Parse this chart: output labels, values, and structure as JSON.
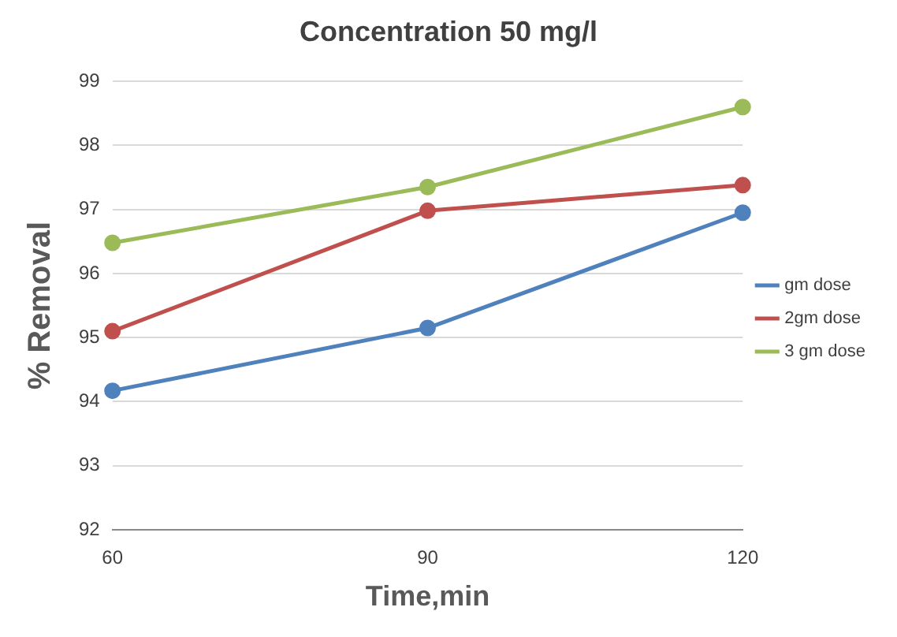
{
  "chart_data": {
    "type": "line",
    "title": "Concentration 50 mg/l",
    "xlabel": "Time,min",
    "ylabel": "% Removal",
    "categories": [
      "60",
      "90",
      "120"
    ],
    "series": [
      {
        "name": "gm dose",
        "color": "#4f81bd",
        "values": [
          94.17,
          95.15,
          96.95
        ]
      },
      {
        "name": "2gm dose",
        "color": "#c0504d",
        "values": [
          95.1,
          96.98,
          97.38
        ]
      },
      {
        "name": "3 gm dose",
        "color": "#9bbb59",
        "values": [
          96.48,
          97.35,
          98.6
        ]
      }
    ],
    "ylim": [
      92,
      99
    ],
    "yticks": [
      92,
      93,
      94,
      95,
      96,
      97,
      98,
      99
    ],
    "grid": "y",
    "legend": "right",
    "marker": "circle"
  }
}
